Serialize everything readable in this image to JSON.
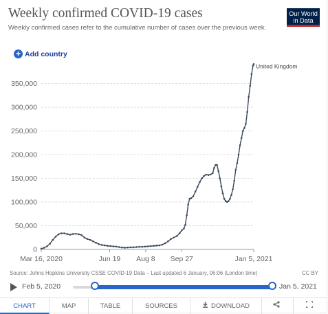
{
  "header": {
    "title": "Weekly confirmed COVID-19 cases",
    "subtitle": "Weekly confirmed cases refer to the cumulative number of cases over the previous week.",
    "logo_line1": "Our World",
    "logo_line2": "in Data"
  },
  "add_country_label": "Add country",
  "footer": {
    "source": "Source: Johns Hopkins University CSSE COVID-19 Data – Last updated 6 January, 06:06 (London time)",
    "license": "CC BY"
  },
  "timeline": {
    "start_label": "Feb 5, 2020",
    "end_label": "Jan 5, 2021",
    "start_fraction": 0.0,
    "end_fraction": 1.0
  },
  "tabs": [
    {
      "label": "CHART",
      "active": true
    },
    {
      "label": "MAP",
      "active": false
    },
    {
      "label": "TABLE",
      "active": false
    },
    {
      "label": "SOURCES",
      "active": false
    },
    {
      "label": "DOWNLOAD",
      "active": false
    }
  ],
  "icons": {
    "download": "download-icon",
    "share": "share-icon",
    "fullscreen": "fullscreen-icon",
    "play": "play-icon",
    "add": "plus-icon"
  },
  "colors": {
    "series": "#3b4a5c",
    "accent": "#2a64c8",
    "logo_bg": "#002147",
    "logo_stripe": "#c1272d"
  },
  "chart_data": {
    "type": "line",
    "title": "Weekly confirmed COVID-19 cases",
    "ylim": [
      0,
      390000
    ],
    "yticks": [
      0,
      50000,
      100000,
      150000,
      200000,
      250000,
      300000,
      350000
    ],
    "ytick_labels": [
      "0",
      "50,000",
      "100,000",
      "150,000",
      "200,000",
      "250,000",
      "300,000",
      "350,000"
    ],
    "xlim": [
      "2020-03-16",
      "2021-01-05"
    ],
    "xtick_dates": [
      "2020-03-16",
      "2020-06-19",
      "2020-08-08",
      "2020-09-27",
      "2021-01-05"
    ],
    "xtick_labels": [
      "Mar 16, 2020",
      "Jun 19",
      "Aug 8",
      "Sep 27",
      "Jan 5, 2021"
    ],
    "grid": "horizontal",
    "series": [
      {
        "name": "United Kingdom",
        "points": [
          [
            "2020-03-16",
            1500
          ],
          [
            "2020-03-20",
            3500
          ],
          [
            "2020-03-24",
            6500
          ],
          [
            "2020-03-28",
            12000
          ],
          [
            "2020-04-01",
            20000
          ],
          [
            "2020-04-05",
            27000
          ],
          [
            "2020-04-09",
            32000
          ],
          [
            "2020-04-13",
            34000
          ],
          [
            "2020-04-17",
            34000
          ],
          [
            "2020-04-21",
            32500
          ],
          [
            "2020-04-25",
            31000
          ],
          [
            "2020-04-29",
            32500
          ],
          [
            "2020-05-03",
            33000
          ],
          [
            "2020-05-07",
            32000
          ],
          [
            "2020-05-11",
            30000
          ],
          [
            "2020-05-15",
            25000
          ],
          [
            "2020-05-19",
            22000
          ],
          [
            "2020-05-23",
            20000
          ],
          [
            "2020-05-27",
            17000
          ],
          [
            "2020-05-31",
            14000
          ],
          [
            "2020-06-04",
            11000
          ],
          [
            "2020-06-08",
            9500
          ],
          [
            "2020-06-12",
            8500
          ],
          [
            "2020-06-16",
            7500
          ],
          [
            "2020-06-20",
            7000
          ],
          [
            "2020-06-24",
            6500
          ],
          [
            "2020-06-28",
            6000
          ],
          [
            "2020-07-02",
            5000
          ],
          [
            "2020-07-06",
            4000
          ],
          [
            "2020-07-10",
            3500
          ],
          [
            "2020-07-14",
            4000
          ],
          [
            "2020-07-18",
            4500
          ],
          [
            "2020-07-22",
            4500
          ],
          [
            "2020-07-26",
            5000
          ],
          [
            "2020-07-30",
            5500
          ],
          [
            "2020-08-03",
            5500
          ],
          [
            "2020-08-07",
            6000
          ],
          [
            "2020-08-11",
            6500
          ],
          [
            "2020-08-15",
            7000
          ],
          [
            "2020-08-19",
            7500
          ],
          [
            "2020-08-23",
            8000
          ],
          [
            "2020-08-27",
            8500
          ],
          [
            "2020-08-31",
            10000
          ],
          [
            "2020-09-04",
            13000
          ],
          [
            "2020-09-08",
            17000
          ],
          [
            "2020-09-12",
            22000
          ],
          [
            "2020-09-16",
            25000
          ],
          [
            "2020-09-20",
            28000
          ],
          [
            "2020-09-24",
            34000
          ],
          [
            "2020-09-27",
            40000
          ],
          [
            "2020-09-30",
            44000
          ],
          [
            "2020-10-02",
            52000
          ],
          [
            "2020-10-04",
            72000
          ],
          [
            "2020-10-06",
            95000
          ],
          [
            "2020-10-08",
            107000
          ],
          [
            "2020-10-10",
            108000
          ],
          [
            "2020-10-13",
            112000
          ],
          [
            "2020-10-16",
            122000
          ],
          [
            "2020-10-19",
            132000
          ],
          [
            "2020-10-22",
            142000
          ],
          [
            "2020-10-25",
            150000
          ],
          [
            "2020-10-28",
            155000
          ],
          [
            "2020-10-31",
            158000
          ],
          [
            "2020-11-03",
            157000
          ],
          [
            "2020-11-06",
            158000
          ],
          [
            "2020-11-09",
            161000
          ],
          [
            "2020-11-11",
            172000
          ],
          [
            "2020-11-13",
            178000
          ],
          [
            "2020-11-15",
            178000
          ],
          [
            "2020-11-17",
            165000
          ],
          [
            "2020-11-19",
            150000
          ],
          [
            "2020-11-21",
            133000
          ],
          [
            "2020-11-23",
            118000
          ],
          [
            "2020-11-25",
            107000
          ],
          [
            "2020-11-27",
            102000
          ],
          [
            "2020-11-29",
            100000
          ],
          [
            "2020-12-01",
            102000
          ],
          [
            "2020-12-03",
            107000
          ],
          [
            "2020-12-05",
            115000
          ],
          [
            "2020-12-07",
            127000
          ],
          [
            "2020-12-09",
            145000
          ],
          [
            "2020-12-11",
            168000
          ],
          [
            "2020-12-13",
            182000
          ],
          [
            "2020-12-15",
            200000
          ],
          [
            "2020-12-17",
            220000
          ],
          [
            "2020-12-19",
            235000
          ],
          [
            "2020-12-21",
            250000
          ],
          [
            "2020-12-23",
            256000
          ],
          [
            "2020-12-25",
            265000
          ],
          [
            "2020-12-27",
            290000
          ],
          [
            "2020-12-29",
            322000
          ],
          [
            "2020-12-31",
            345000
          ],
          [
            "2021-01-02",
            370000
          ],
          [
            "2021-01-04",
            388000
          ],
          [
            "2021-01-05",
            391000
          ]
        ]
      }
    ]
  }
}
